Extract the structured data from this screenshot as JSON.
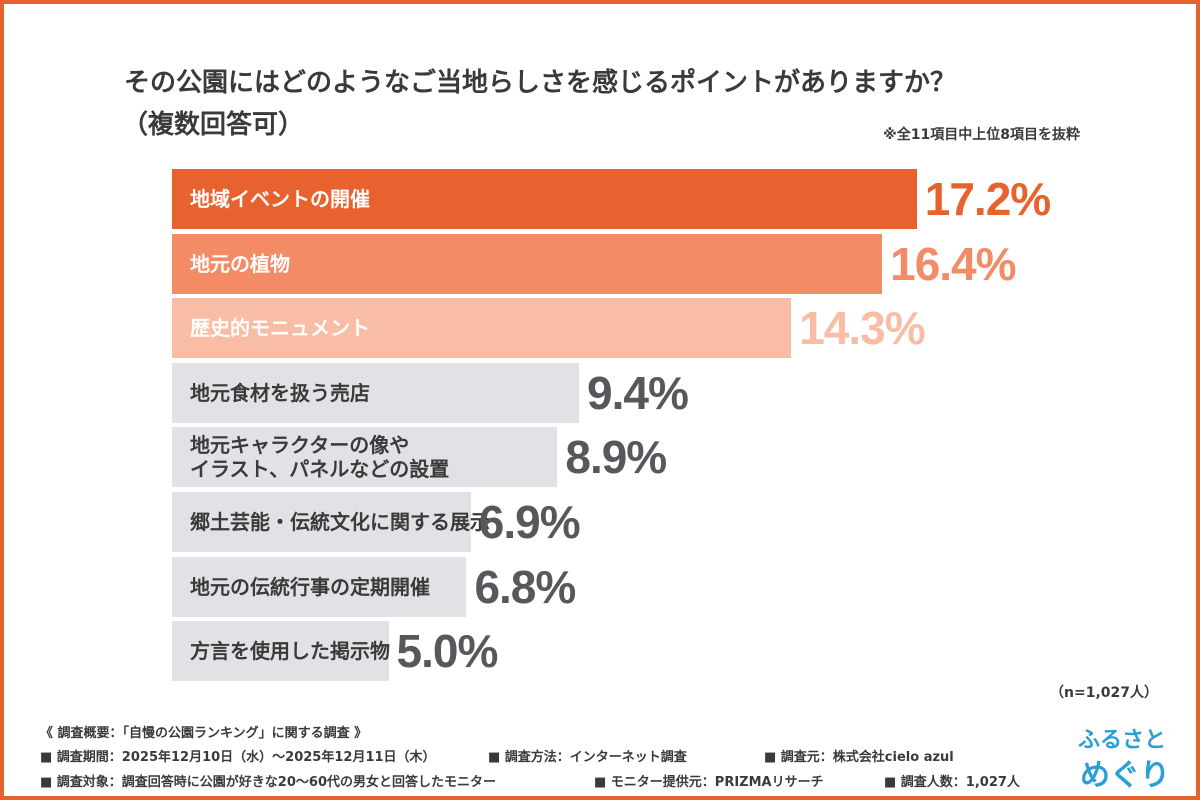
{
  "chart_data": {
    "type": "bar",
    "orientation": "horizontal",
    "title": "その公園にはどのようなご当地らしさを感じるポイントがありますか？",
    "subtitle": "（複数回答可）",
    "note": "※全11項目中上位8項目を抜粋",
    "sample_note": "（n=1,027人）",
    "categories": [
      "地域イベントの開催",
      "地元の植物",
      "歴史的モニュメント",
      "地元食材を扱う売店",
      "地元キャラクターの像や\nイラスト、パネルなどの設置",
      "郷土芸能・伝統文化に関する展示",
      "地元の伝統行事の定期開催",
      "方言を使用した掲示物"
    ],
    "values": [
      17.2,
      16.4,
      14.3,
      9.4,
      8.9,
      6.9,
      6.8,
      5.0
    ],
    "value_labels": [
      "17.2%",
      "16.4%",
      "14.3%",
      "9.4%",
      "8.9%",
      "6.9%",
      "6.8%",
      "5.0%"
    ],
    "colors": [
      "#e8622f",
      "#f28b66",
      "#f9bca5",
      "#e2e1e6",
      "#e2e1e6",
      "#e2e1e6",
      "#e2e1e6",
      "#e2e1e6"
    ],
    "label_colors": [
      "#e8622f",
      "#f28b66",
      "#f9bca5",
      "#58575c",
      "#58575c",
      "#58575c",
      "#58575c",
      "#58575c"
    ],
    "category_text_colors": [
      "#ffffff",
      "#ffffff",
      "#ffffff",
      "#3a3a3a",
      "#3a3a3a",
      "#3a3a3a",
      "#3a3a3a",
      "#3a3a3a"
    ]
  },
  "footer": {
    "heading": "《 調査概要：「自慢の公園ランキング」に関する調査 》",
    "items": [
      "■ 調査期間：2025年12月10日（水）～2025年12月11日（木）",
      "■ 調査方法：インターネット調査",
      "■ 調査元：株式会社cielo azul",
      "■ 調査対象：調査回答時に公園が好きな20～60代の男女と回答したモニター",
      "■ モニター提供元：PRIZMAリサーチ",
      "■ 調査人数：1,027人"
    ]
  },
  "logo": [
    "ふるさと",
    "めぐり"
  ]
}
